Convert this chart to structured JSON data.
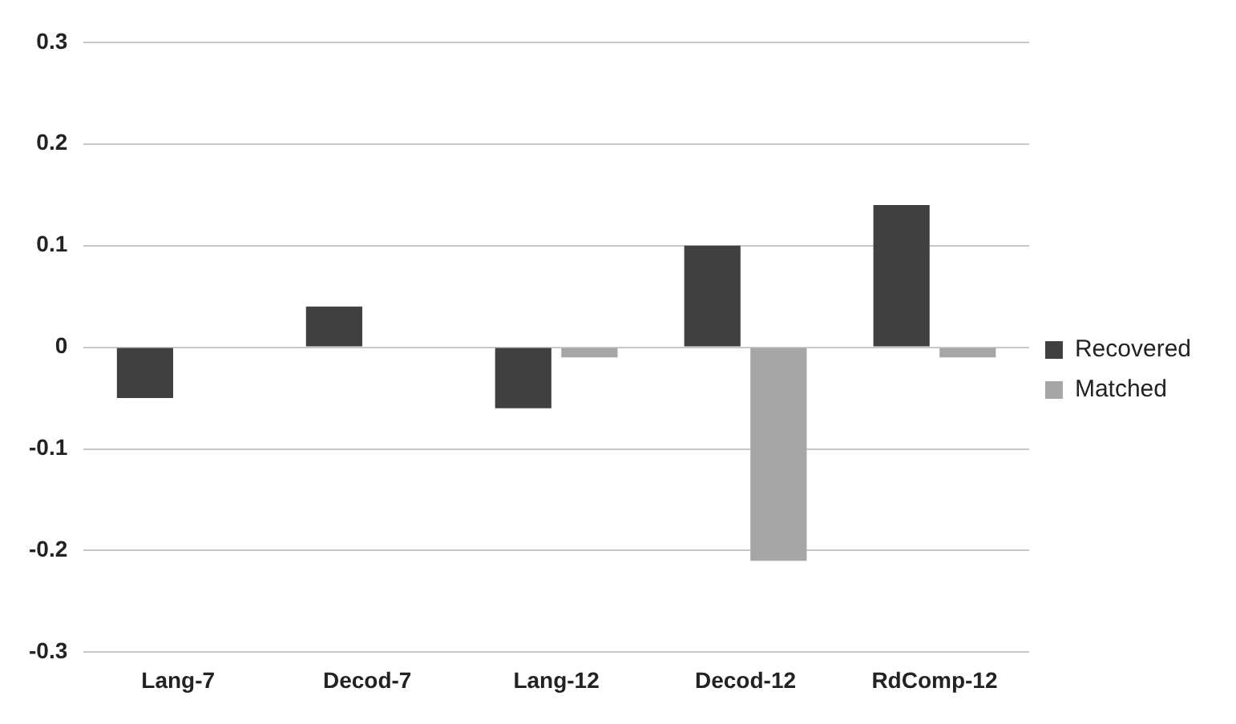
{
  "chart_data": {
    "type": "bar",
    "categories": [
      "Lang-7",
      "Decod-7",
      "Lang-12",
      "Decod-12",
      "RdComp-12"
    ],
    "series": [
      {
        "name": "Recovered",
        "color": "#404040",
        "values": [
          -0.05,
          0.04,
          -0.06,
          0.1,
          0.14
        ]
      },
      {
        "name": "Matched",
        "color": "#a6a6a6",
        "values": [
          0,
          0,
          -0.01,
          -0.21,
          -0.01
        ]
      }
    ],
    "ylim": [
      -0.3,
      0.3
    ],
    "yticks": [
      -0.3,
      -0.2,
      -0.1,
      0,
      0.1,
      0.2,
      0.3
    ],
    "grid": "y",
    "legend": "right"
  }
}
